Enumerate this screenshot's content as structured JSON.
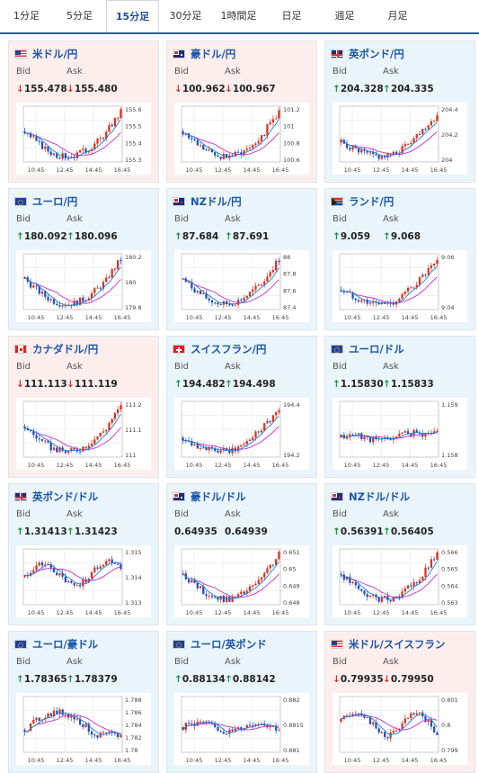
{
  "tabs": [
    {
      "label": "1分足",
      "active": false
    },
    {
      "label": "5分足",
      "active": false
    },
    {
      "label": "15分足",
      "active": true
    },
    {
      "label": "30分足",
      "active": false
    },
    {
      "label": "1時間足",
      "active": false
    },
    {
      "label": "日足",
      "active": false
    },
    {
      "label": "週足",
      "active": false
    },
    {
      "label": "月足",
      "active": false
    }
  ],
  "labels": {
    "bid": "Bid",
    "ask": "Ask"
  },
  "colors": {
    "up": "#1a8f3c",
    "down": "#d9302b",
    "pair": "#1a56a8",
    "active_tab": "#1a4fa0",
    "ma1": "#c030d0",
    "ma2": "#1e7fd0",
    "candle_up": "#e03020",
    "candle_down": "#2050c0"
  },
  "x_ticks": [
    "10:45",
    "12:45",
    "14:45",
    "16:45"
  ],
  "cards": [
    {
      "pair": "米ドル/円",
      "flag": "us-flag",
      "trend": "down",
      "arrow": "↓",
      "bid": "155.478",
      "ask": "155.480",
      "y_ticks": [
        "155.6",
        "155.5",
        "155.4",
        "155.3"
      ]
    },
    {
      "pair": "豪ドル/円",
      "flag": "au-flag",
      "trend": "down",
      "arrow": "↓",
      "bid": "100.962",
      "ask": "100.967",
      "y_ticks": [
        "101.2",
        "101",
        "100.8",
        "100.6"
      ]
    },
    {
      "pair": "英ポンド/円",
      "flag": "uk-flag",
      "trend": "up",
      "arrow": "↑",
      "bid": "204.328",
      "ask": "204.335",
      "y_ticks": [
        "204.4",
        "204.2",
        "204"
      ]
    },
    {
      "pair": "ユーロ/円",
      "flag": "eu-flag",
      "trend": "up",
      "arrow": "↑",
      "bid": "180.092",
      "ask": "180.096",
      "y_ticks": [
        "180.2",
        "180",
        "179.8"
      ]
    },
    {
      "pair": "NZドル/円",
      "flag": "nz-flag",
      "trend": "up",
      "arrow": "↑",
      "bid": "87.684",
      "ask": "87.691",
      "y_ticks": [
        "88",
        "87.8",
        "87.6",
        "87.4"
      ]
    },
    {
      "pair": "ランド/円",
      "flag": "za-flag",
      "trend": "up",
      "arrow": "↑",
      "bid": "9.059",
      "ask": "9.068",
      "y_ticks": [
        "9.06",
        "9.04"
      ]
    },
    {
      "pair": "カナダドル/円",
      "flag": "ca-flag",
      "trend": "down",
      "arrow": "↓",
      "bid": "111.113",
      "ask": "111.119",
      "y_ticks": [
        "111.2",
        "111.1",
        "111"
      ]
    },
    {
      "pair": "スイスフラン/円",
      "flag": "ch-flag",
      "trend": "up",
      "arrow": "↑",
      "bid": "194.482",
      "ask": "194.498",
      "y_ticks": [
        "194.4",
        "194.2"
      ]
    },
    {
      "pair": "ユーロ/ドル",
      "flag": "eu-flag",
      "trend": "up",
      "arrow": "↑",
      "bid": "1.15830",
      "ask": "1.15833",
      "y_ticks": [
        "1.159",
        "1.158"
      ]
    },
    {
      "pair": "英ポンド/ドル",
      "flag": "uk-flag",
      "trend": "up",
      "arrow": "↑",
      "bid": "1.31413",
      "ask": "1.31423",
      "y_ticks": [
        "1.315",
        "1.314",
        "1.313"
      ]
    },
    {
      "pair": "豪ドル/ドル",
      "flag": "au-flag",
      "trend": "flat",
      "arrow": "",
      "bid": "0.64935",
      "ask": "0.64939",
      "y_ticks": [
        "0.651",
        "0.65",
        "0.649",
        "0.648"
      ]
    },
    {
      "pair": "NZドル/ドル",
      "flag": "nz-flag",
      "trend": "up",
      "arrow": "↑",
      "bid": "0.56391",
      "ask": "0.56405",
      "y_ticks": [
        "0.566",
        "0.565",
        "0.564",
        "0.563"
      ]
    },
    {
      "pair": "ユーロ/豪ドル",
      "flag": "eu-flag",
      "trend": "up",
      "arrow": "↑",
      "bid": "1.78365",
      "ask": "1.78379",
      "y_ticks": [
        "1.788",
        "1.786",
        "1.784",
        "1.782",
        "1.78"
      ]
    },
    {
      "pair": "ユーロ/英ポンド",
      "flag": "eu-flag",
      "trend": "up",
      "arrow": "↑",
      "bid": "0.88134",
      "ask": "0.88142",
      "y_ticks": [
        "0.882",
        "0.8815",
        "0.881"
      ]
    },
    {
      "pair": "米ドル/スイスフラン",
      "flag": "us-flag",
      "trend": "down",
      "arrow": "↓",
      "bid": "0.79935",
      "ask": "0.79950",
      "y_ticks": [
        "0.801",
        "0.8",
        "0.799"
      ]
    }
  ]
}
